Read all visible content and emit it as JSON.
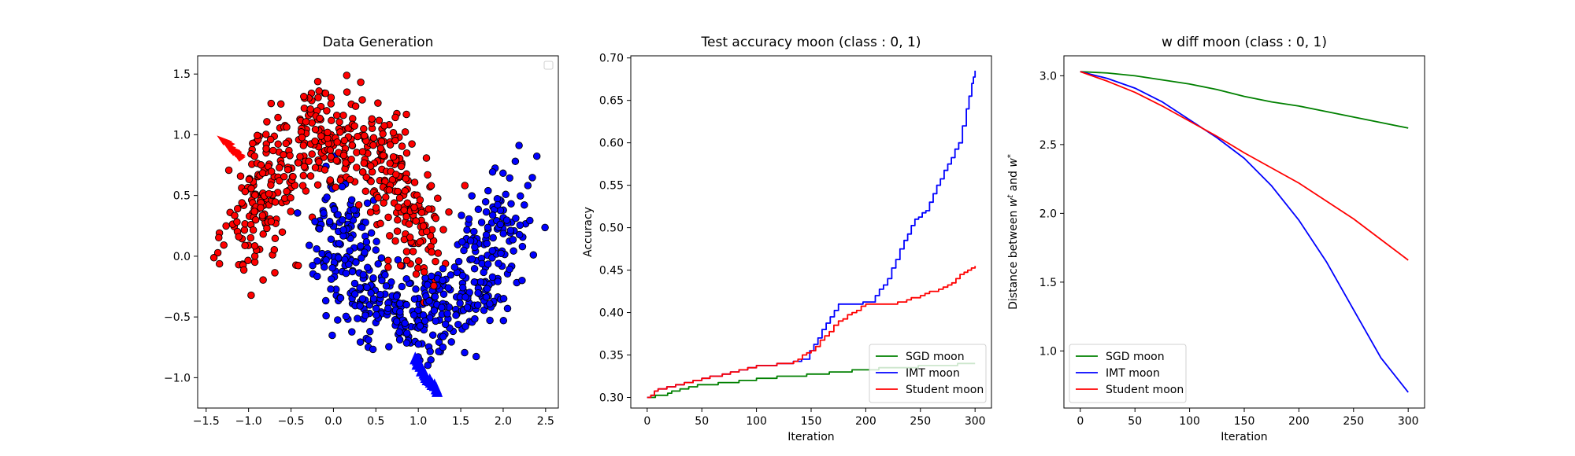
{
  "chart_data": [
    {
      "type": "scatter",
      "title": "Data Generation",
      "xlabel": "",
      "ylabel": "",
      "xlim": [
        -1.6,
        2.65
      ],
      "ylim": [
        -1.25,
        1.65
      ],
      "xticks": [
        -1.5,
        -1.0,
        -0.5,
        0.0,
        0.5,
        1.0,
        1.5,
        2.0,
        2.5
      ],
      "yticks": [
        -1.0,
        -0.5,
        0.0,
        0.5,
        1.0,
        1.5
      ],
      "grid": false,
      "legend": "top-right (empty)",
      "colors": {
        "class0": "#ff0000",
        "class1": "#0000ff"
      },
      "moon_noise": 0.2,
      "points_per_class": 500,
      "class0_arc": {
        "center": [
          0.0,
          0.0
        ],
        "radius": 1.0,
        "theta_deg": [
          0,
          180
        ]
      },
      "class1_arc": {
        "center": [
          1.0,
          0.5
        ],
        "radius": 1.0,
        "theta_deg": [
          180,
          360
        ],
        "shape": "cos(t), -sin(t)"
      },
      "red_arrow_markers": {
        "x_range": [
          -1.28,
          -1.08
        ],
        "y_range": [
          0.82,
          0.96
        ]
      },
      "blue_arrow_markers": {
        "x_range": [
          0.96,
          1.22
        ],
        "y_range": [
          -1.12,
          -0.85
        ]
      }
    },
    {
      "type": "line",
      "title": "Test accuracy moon (class : 0, 1)",
      "xlabel": "Iteration",
      "ylabel": "Accuracy",
      "xlim": [
        -15,
        315
      ],
      "ylim": [
        0.2875,
        0.7025
      ],
      "xticks": [
        0,
        50,
        100,
        150,
        200,
        250,
        300
      ],
      "yticks": [
        0.3,
        0.35,
        0.4,
        0.45,
        0.5,
        0.55,
        0.6,
        0.65,
        0.7
      ],
      "grid": false,
      "legend": "bottom-right",
      "series": [
        {
          "name": "SGD moon",
          "color": "#008000",
          "x": [
            0,
            15,
            30,
            50,
            80,
            100,
            130,
            150,
            175,
            200,
            300
          ],
          "y": [
            0.3,
            0.303,
            0.31,
            0.315,
            0.318,
            0.322,
            0.325,
            0.327,
            0.33,
            0.333,
            0.34
          ]
        },
        {
          "name": "IMT moon",
          "color": "#0000ff",
          "x": [
            0,
            10,
            30,
            50,
            80,
            100,
            130,
            145,
            160,
            175,
            190,
            205,
            220,
            235,
            245,
            255,
            265,
            275,
            285,
            292,
            297,
            300
          ],
          "y": [
            0.3,
            0.31,
            0.316,
            0.322,
            0.33,
            0.337,
            0.34,
            0.345,
            0.38,
            0.41,
            0.41,
            0.413,
            0.44,
            0.485,
            0.51,
            0.52,
            0.55,
            0.575,
            0.6,
            0.64,
            0.67,
            0.685
          ]
        },
        {
          "name": "Student moon",
          "color": "#ff0000",
          "x": [
            0,
            10,
            30,
            50,
            80,
            100,
            130,
            150,
            175,
            200,
            225,
            250,
            275,
            290,
            300
          ],
          "y": [
            0.3,
            0.31,
            0.315,
            0.322,
            0.33,
            0.337,
            0.34,
            0.355,
            0.39,
            0.41,
            0.41,
            0.42,
            0.432,
            0.448,
            0.455
          ]
        }
      ]
    },
    {
      "type": "line",
      "title": "w diff moon (class : 0, 1)",
      "xlabel": "Iteration",
      "ylabel": "Distance between w^t and w^*",
      "ylabel_parts": {
        "prefix": "Distance between ",
        "w": "w",
        "t": "t",
        "and": " and ",
        "star": "*"
      },
      "xlim": [
        -15,
        315
      ],
      "ylim": [
        0.585,
        3.145
      ],
      "xticks": [
        0,
        50,
        100,
        150,
        200,
        250,
        300
      ],
      "yticks": [
        1.0,
        1.5,
        2.0,
        2.5,
        3.0
      ],
      "grid": false,
      "legend": "bottom-left",
      "series": [
        {
          "name": "SGD moon",
          "color": "#008000",
          "x": [
            0,
            25,
            50,
            75,
            100,
            125,
            150,
            175,
            200,
            225,
            250,
            275,
            300
          ],
          "y": [
            3.03,
            3.02,
            3.0,
            2.97,
            2.94,
            2.9,
            2.85,
            2.81,
            2.78,
            2.74,
            2.7,
            2.66,
            2.62
          ]
        },
        {
          "name": "IMT moon",
          "color": "#0000ff",
          "x": [
            0,
            25,
            50,
            75,
            100,
            125,
            150,
            175,
            200,
            225,
            250,
            275,
            300
          ],
          "y": [
            3.03,
            2.98,
            2.91,
            2.81,
            2.68,
            2.55,
            2.4,
            2.2,
            1.95,
            1.65,
            1.3,
            0.95,
            0.7
          ]
        },
        {
          "name": "Student moon",
          "color": "#ff0000",
          "x": [
            0,
            25,
            50,
            75,
            100,
            125,
            150,
            175,
            200,
            225,
            250,
            275,
            300
          ],
          "y": [
            3.03,
            2.96,
            2.88,
            2.78,
            2.67,
            2.56,
            2.44,
            2.33,
            2.22,
            2.09,
            1.96,
            1.81,
            1.66
          ]
        }
      ]
    }
  ]
}
